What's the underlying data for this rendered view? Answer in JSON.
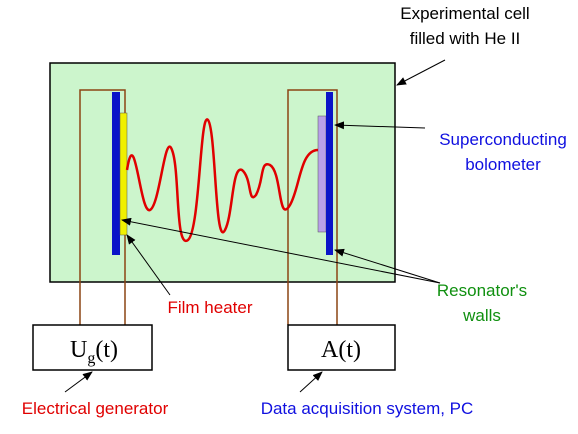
{
  "cell_label": [
    "Experimental cell",
    "filled with He II"
  ],
  "bolometer_label": [
    "Superconducting",
    "bolometer"
  ],
  "walls_label": [
    "Resonator's",
    "walls"
  ],
  "heater_label": "Film heater",
  "generator_box": {
    "main": "U",
    "subscript": "g",
    "suffix": "(t)"
  },
  "acquisition_box": "A(t)",
  "generator_label": "Electrical generator",
  "acquisition_label": "Data acquisition system, PC"
}
